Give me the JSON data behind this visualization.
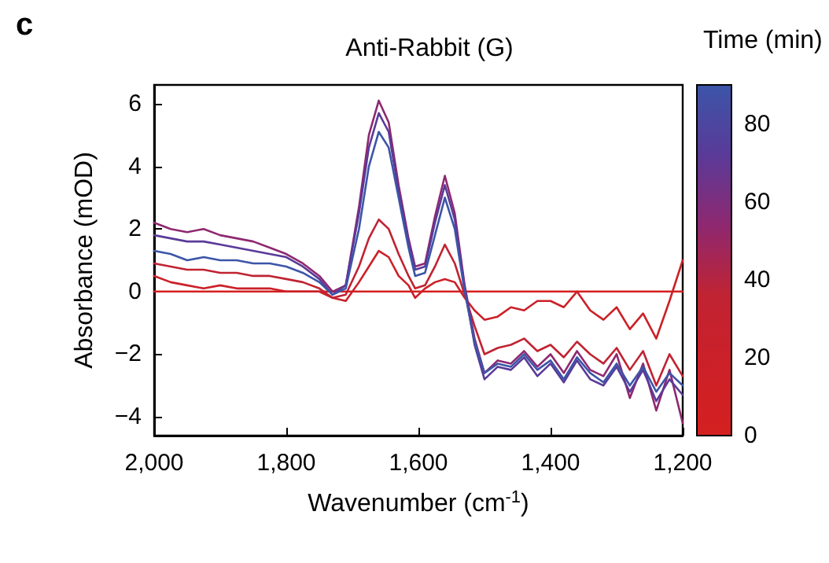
{
  "chart_data": {
    "type": "line",
    "title": "Anti-Rabbit (G)",
    "xlabel": "Wavenumber (cm$^{-1}$)",
    "ylabel": "Absorbance (mOD)",
    "clabel": "Time (min)",
    "annotations": [
      "c"
    ],
    "x": [
      2000,
      1975,
      1950,
      1925,
      1900,
      1875,
      1850,
      1825,
      1800,
      1775,
      1750,
      1730,
      1710,
      1690,
      1675,
      1660,
      1645,
      1630,
      1615,
      1605,
      1590,
      1575,
      1560,
      1545,
      1530,
      1515,
      1500,
      1480,
      1460,
      1440,
      1420,
      1400,
      1380,
      1360,
      1340,
      1320,
      1300,
      1280,
      1260,
      1240,
      1220,
      1200
    ],
    "series": [
      {
        "color": "#d42020",
        "values": [
          0,
          0,
          0,
          0,
          0,
          0,
          0,
          0,
          0,
          0,
          0,
          0,
          0,
          0,
          0,
          0,
          0,
          0,
          0,
          0,
          0,
          0,
          0,
          0,
          0,
          0,
          0,
          0,
          0,
          0,
          0,
          0,
          0,
          0,
          0,
          0,
          0,
          0,
          0,
          0,
          0,
          0
        ]
      },
      {
        "color": "#cc2028",
        "values": [
          0.5,
          0.3,
          0.2,
          0.1,
          0.2,
          0.1,
          0.1,
          0.1,
          0.0,
          0.0,
          0.0,
          -0.2,
          -0.3,
          0.3,
          0.8,
          1.3,
          1.1,
          0.5,
          0.2,
          -0.2,
          0.1,
          0.3,
          0.4,
          0.3,
          -0.2,
          -0.6,
          -0.9,
          -0.8,
          -0.5,
          -0.6,
          -0.3,
          -0.3,
          -0.5,
          0.0,
          -0.6,
          -0.9,
          -0.5,
          -1.2,
          -0.7,
          -1.5,
          -0.3,
          1.0
        ]
      },
      {
        "color": "#c02332",
        "values": [
          0.9,
          0.8,
          0.7,
          0.7,
          0.6,
          0.6,
          0.5,
          0.5,
          0.4,
          0.3,
          0.1,
          -0.2,
          -0.1,
          0.8,
          1.7,
          2.3,
          2.0,
          1.2,
          0.5,
          0.1,
          0.2,
          0.8,
          1.5,
          0.9,
          -0.1,
          -1.1,
          -2.0,
          -1.8,
          -1.7,
          -1.5,
          -1.9,
          -1.7,
          -2.1,
          -1.6,
          -2.0,
          -2.3,
          -1.8,
          -2.5,
          -1.9,
          -3.0,
          -2.0,
          -2.7
        ]
      },
      {
        "color": "#8e2870",
        "values": [
          2.2,
          2.0,
          1.9,
          2.0,
          1.8,
          1.7,
          1.6,
          1.4,
          1.2,
          0.9,
          0.5,
          0.0,
          0.2,
          2.7,
          5.0,
          6.1,
          5.4,
          3.4,
          1.7,
          0.8,
          0.9,
          2.4,
          3.7,
          2.5,
          0.2,
          -1.5,
          -2.6,
          -2.2,
          -2.3,
          -1.9,
          -2.4,
          -2.0,
          -2.6,
          -1.9,
          -2.5,
          -2.7,
          -2.0,
          -3.4,
          -2.3,
          -3.8,
          -2.5,
          -4.2
        ]
      },
      {
        "color": "#5a3a98",
        "values": [
          1.8,
          1.7,
          1.6,
          1.6,
          1.5,
          1.4,
          1.3,
          1.2,
          1.1,
          0.8,
          0.4,
          -0.1,
          0.2,
          2.5,
          4.6,
          5.7,
          5.1,
          3.2,
          1.6,
          0.7,
          0.8,
          2.2,
          3.4,
          2.3,
          0.1,
          -1.7,
          -2.8,
          -2.4,
          -2.5,
          -2.1,
          -2.7,
          -2.3,
          -2.9,
          -2.2,
          -2.8,
          -3.0,
          -2.4,
          -3.2,
          -2.5,
          -3.5,
          -2.8,
          -3.3
        ]
      },
      {
        "color": "#3c55a8",
        "values": [
          1.3,
          1.2,
          1.0,
          1.1,
          1.0,
          1.0,
          0.9,
          0.9,
          0.8,
          0.6,
          0.3,
          -0.1,
          0.1,
          2.0,
          4.0,
          5.1,
          4.6,
          3.0,
          1.4,
          0.5,
          0.6,
          1.8,
          3.0,
          2.0,
          0.0,
          -1.6,
          -2.6,
          -2.3,
          -2.4,
          -2.0,
          -2.5,
          -2.2,
          -2.8,
          -2.1,
          -2.6,
          -2.9,
          -2.3,
          -3.0,
          -2.4,
          -3.2,
          -2.6,
          -3.0
        ]
      }
    ],
    "xlim": [
      2000,
      1200
    ],
    "xticks": [
      {
        "value": 2000,
        "label": "2,000"
      },
      {
        "value": 1800,
        "label": "1,800"
      },
      {
        "value": 1600,
        "label": "1,600"
      },
      {
        "value": 1400,
        "label": "1,400"
      },
      {
        "value": 1200,
        "label": "1,200"
      }
    ],
    "ylim": [
      -4.6,
      6.6
    ],
    "yticks": [
      -4,
      -2,
      0,
      2,
      4,
      6
    ],
    "clim": [
      0,
      90
    ],
    "cticks": [
      0,
      20,
      40,
      60,
      80
    ],
    "grid": false,
    "legend": false,
    "marker": "none",
    "line_style": "solid"
  }
}
